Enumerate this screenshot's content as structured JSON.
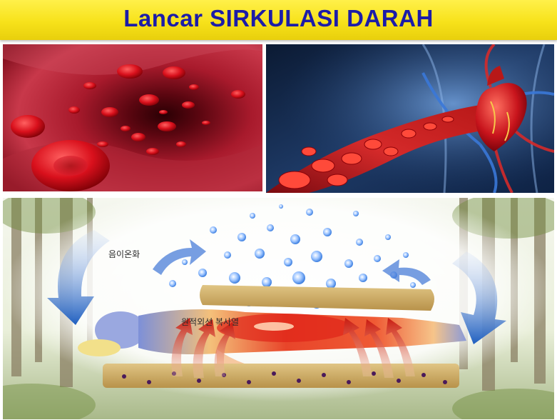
{
  "banner": {
    "title": "Lancar SIRKULASI DARAH"
  },
  "illustration": {
    "negative_ion_label": "음이온화",
    "far_infrared_label": "원적외선 복사열"
  },
  "icons": {
    "vessel_photo": "blood-vessel-photo",
    "heart_photo": "heart-circulation-photo",
    "therapy": "thermal-mat-therapy-illustration"
  }
}
